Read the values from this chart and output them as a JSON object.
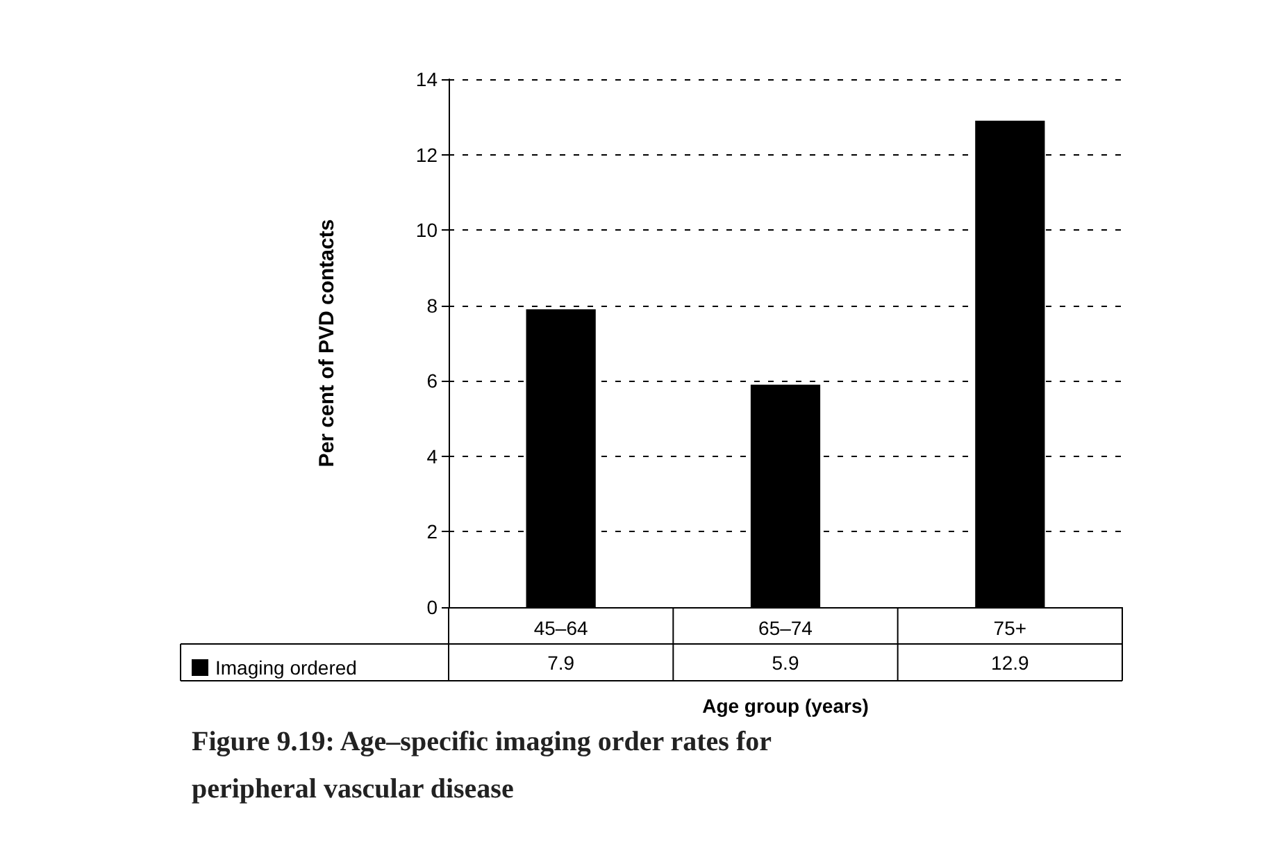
{
  "chart_data": {
    "type": "bar",
    "title": "Figure 9.19: Age–specific imaging order rates for peripheral vascular disease",
    "xlabel": "Age group (years)",
    "ylabel": "Per cent of PVD contacts",
    "categories": [
      "45–64",
      "65–74",
      "75+"
    ],
    "series": [
      {
        "name": "Imaging ordered",
        "color": "#000000",
        "values": [
          7.9,
          5.9,
          12.9
        ]
      }
    ],
    "ylim": [
      0,
      14
    ],
    "yticks": [
      0,
      2,
      4,
      6,
      8,
      10,
      12,
      14
    ],
    "grid": "y",
    "legend": "bottom",
    "data_labels": true
  }
}
